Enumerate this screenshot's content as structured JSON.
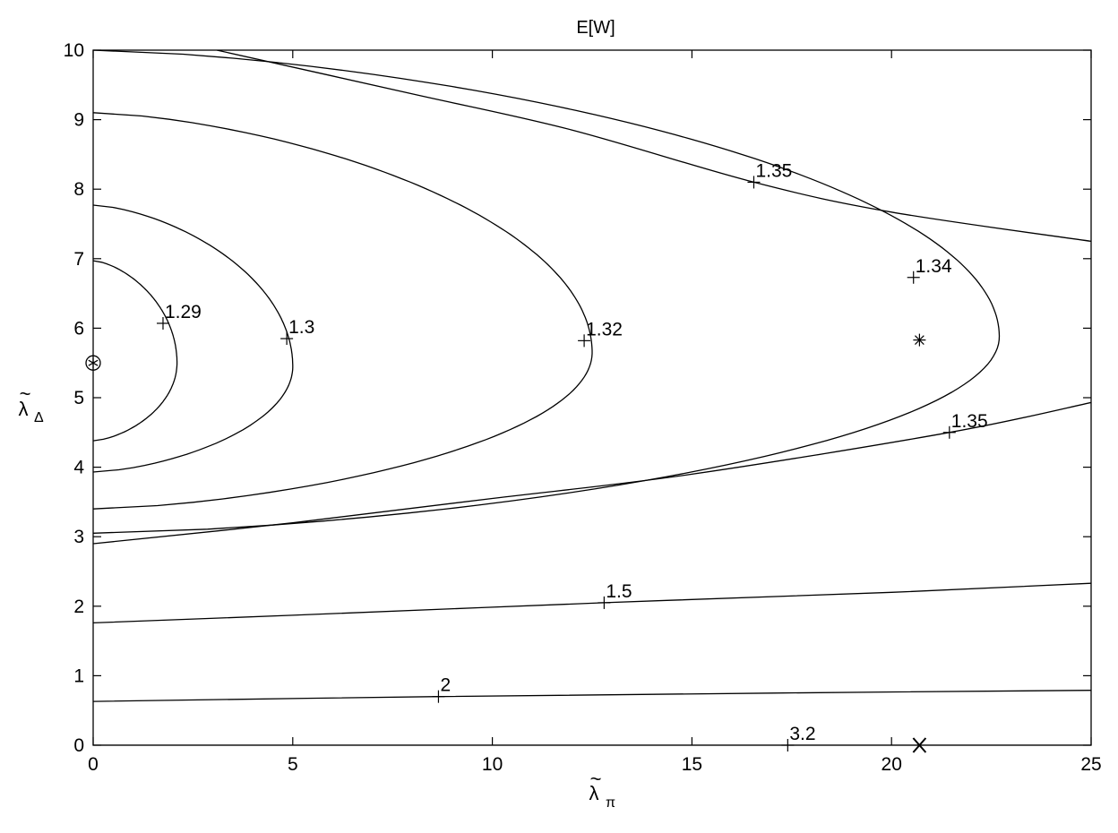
{
  "chart_data": {
    "type": "contour",
    "title": "E[W]",
    "xlabel": {
      "symbol": "λ",
      "sub": "π",
      "accent": "~"
    },
    "ylabel": {
      "symbol": "λ",
      "sub": "Δ",
      "accent": "~"
    },
    "xlim": [
      0,
      25
    ],
    "ylim": [
      0,
      10
    ],
    "xticks": [
      0,
      5,
      10,
      15,
      20,
      25
    ],
    "yticks": [
      0,
      1,
      2,
      3,
      4,
      5,
      6,
      7,
      8,
      9,
      10
    ],
    "contours": [
      {
        "level": "1.29",
        "kind": "closed",
        "yc": 5.5,
        "dx": 2.1,
        "yt": 6.97,
        "yb": 4.38,
        "label_at": [
          1.75,
          6.07
        ]
      },
      {
        "level": "1.3",
        "kind": "closed",
        "yc": 5.45,
        "dx": 5.0,
        "yt": 7.77,
        "yb": 3.93,
        "label_at": [
          4.85,
          5.85
        ]
      },
      {
        "level": "1.32",
        "kind": "closed",
        "yc": 5.65,
        "dx": 12.5,
        "yt": 9.1,
        "yb": 3.4,
        "label_at": [
          12.3,
          5.82
        ]
      },
      {
        "level": "1.34",
        "kind": "closed",
        "yc": 5.88,
        "dx": 22.7,
        "yt": 10.0,
        "yb": 3.05,
        "label_at": [
          20.55,
          6.73
        ]
      },
      {
        "level": "1.35",
        "kind": "upper",
        "points": [
          [
            3.1,
            10.0
          ],
          [
            8.0,
            9.37
          ],
          [
            12.0,
            8.85
          ],
          [
            16.55,
            8.1
          ],
          [
            20.0,
            7.67
          ],
          [
            25.0,
            7.25
          ]
        ],
        "label_at": [
          16.55,
          8.1
        ]
      },
      {
        "level": "1.35",
        "kind": "lower",
        "points": [
          [
            0.0,
            2.9
          ],
          [
            5.0,
            3.2
          ],
          [
            10.0,
            3.55
          ],
          [
            15.0,
            3.9
          ],
          [
            21.45,
            4.5
          ],
          [
            25.0,
            4.93
          ]
        ],
        "label_at": [
          21.45,
          4.5
        ]
      },
      {
        "level": "1.5",
        "kind": "line",
        "points": [
          [
            0.0,
            1.76
          ],
          [
            5.0,
            1.87
          ],
          [
            12.8,
            2.05
          ],
          [
            20.0,
            2.2
          ],
          [
            25.0,
            2.33
          ]
        ],
        "label_at": [
          12.8,
          2.05
        ]
      },
      {
        "level": "2",
        "kind": "line",
        "points": [
          [
            0.0,
            0.63
          ],
          [
            8.65,
            0.7
          ],
          [
            17.0,
            0.75
          ],
          [
            25.0,
            0.79
          ]
        ],
        "label_at": [
          8.65,
          0.7
        ]
      },
      {
        "level": "3.2",
        "kind": "line",
        "points": [
          [
            0.0,
            0.0
          ],
          [
            25.0,
            0.0
          ]
        ],
        "label_at": [
          17.4,
          0.0
        ]
      }
    ],
    "markers": [
      {
        "name": "circled-asterisk",
        "x": 0.0,
        "y": 5.5
      },
      {
        "name": "asterisk",
        "x": 20.7,
        "y": 5.83
      },
      {
        "name": "x-mark",
        "x": 20.7,
        "y": 0.0
      }
    ]
  }
}
